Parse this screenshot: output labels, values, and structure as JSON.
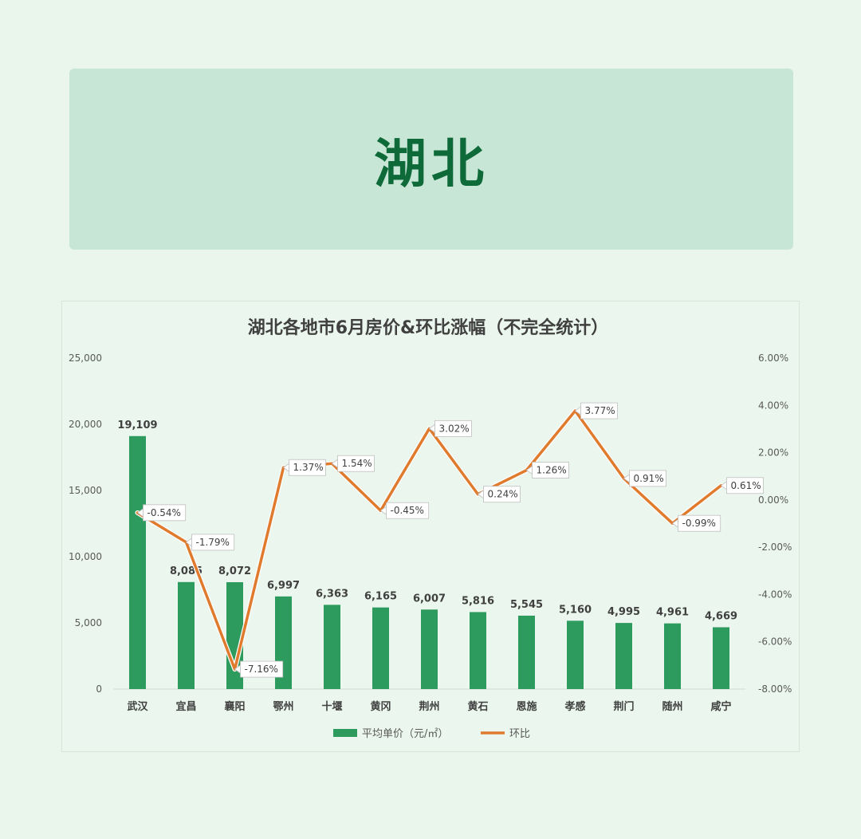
{
  "banner": {
    "title": "湖北"
  },
  "colors": {
    "bar": "#2e9b5e",
    "line": "#e07b2e",
    "banner_bg": "#c8e6d6",
    "banner_text": "#0f6a3a"
  },
  "chart_data": {
    "type": "bar",
    "title": "湖北各地市6月房价&环比涨幅（不完全统计）",
    "categories": [
      "武汉",
      "宜昌",
      "襄阳",
      "鄂州",
      "十堰",
      "黄冈",
      "荆州",
      "黄石",
      "恩施",
      "孝感",
      "荆门",
      "随州",
      "咸宁"
    ],
    "series": [
      {
        "name": "平均单价（元/㎡）",
        "type": "bar",
        "axis": "left",
        "values": [
          19109,
          8085,
          8072,
          6997,
          6363,
          6165,
          6007,
          5816,
          5545,
          5160,
          4995,
          4961,
          4669
        ],
        "labels": [
          "19,109",
          "8,085",
          "8,072",
          "6,997",
          "6,363",
          "6,165",
          "6,007",
          "5,816",
          "5,545",
          "5,160",
          "4,995",
          "4,961",
          "4,669"
        ]
      },
      {
        "name": "环比",
        "type": "line",
        "axis": "right",
        "values": [
          -0.54,
          -1.79,
          -7.16,
          1.37,
          1.54,
          -0.45,
          3.02,
          0.24,
          1.26,
          3.77,
          0.91,
          -0.99,
          0.61
        ],
        "labels": [
          "-0.54%",
          "-1.79%",
          "-7.16%",
          "1.37%",
          "1.54%",
          "-0.45%",
          "3.02%",
          "0.24%",
          "1.26%",
          "3.77%",
          "0.91%",
          "-0.99%",
          "0.61%"
        ]
      }
    ],
    "y_left": {
      "min": 0,
      "max": 25000,
      "ticks": [
        "0",
        "5,000",
        "10,000",
        "15,000",
        "20,000",
        "25,000"
      ]
    },
    "y_right": {
      "min": -8,
      "max": 6,
      "ticks": [
        "-8.00%",
        "-6.00%",
        "-4.00%",
        "-2.00%",
        "0.00%",
        "2.00%",
        "4.00%",
        "6.00%"
      ]
    },
    "legend_position": "bottom",
    "grid": false
  }
}
